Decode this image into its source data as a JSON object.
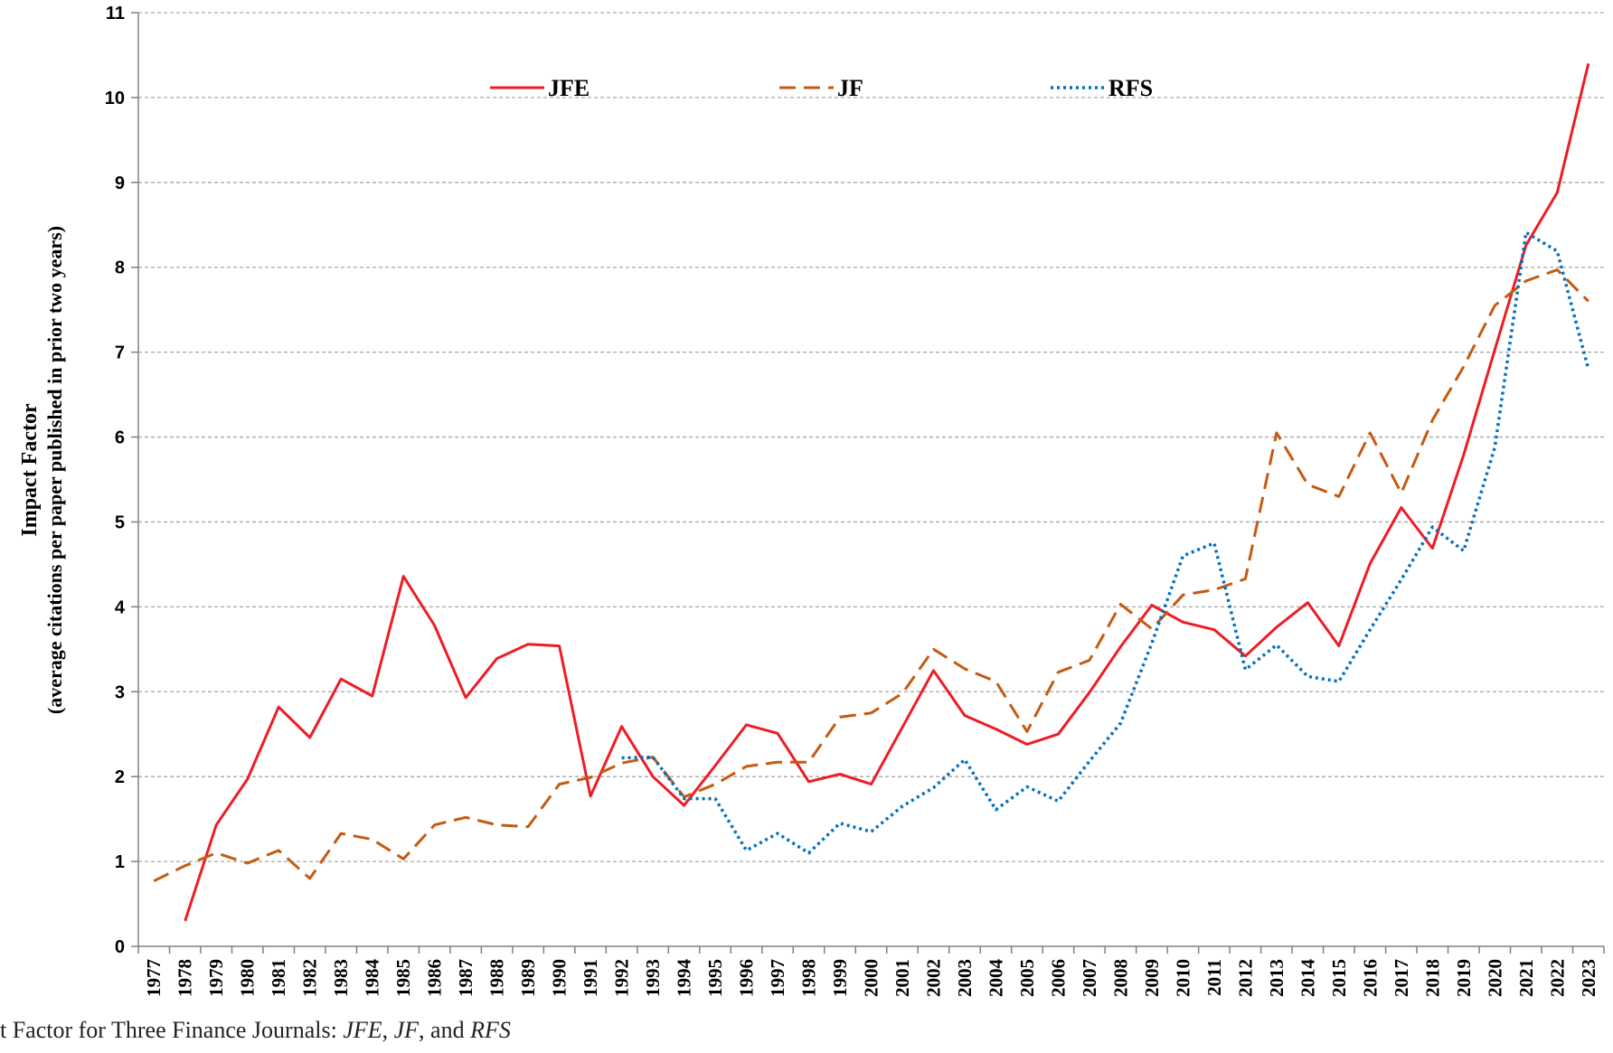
{
  "caption": {
    "prefix": "t Factor for Three Finance Journals: ",
    "j1": "JFE",
    "sep1": ", ",
    "j2": "JF",
    "sep2": ", and ",
    "j3": "RFS"
  },
  "chart_data": {
    "type": "line",
    "title": "",
    "ylabel": "Impact Factor",
    "ylabel_sub": "(average citations per paper published in prior two years)",
    "xlabel": "",
    "ylim": [
      0,
      11
    ],
    "yticks": [
      "0",
      "1",
      "2",
      "3",
      "4",
      "5",
      "6",
      "7",
      "8",
      "9",
      "10",
      "11"
    ],
    "grid": true,
    "legend_position": "top",
    "categories": [
      "1977",
      "1978",
      "1979",
      "1980",
      "1981",
      "1982",
      "1983",
      "1984",
      "1985",
      "1986",
      "1987",
      "1988",
      "1989",
      "1990",
      "1991",
      "1992",
      "1993",
      "1994",
      "1995",
      "1996",
      "1997",
      "1998",
      "1999",
      "2000",
      "2001",
      "2002",
      "2003",
      "2004",
      "2005",
      "2006",
      "2007",
      "2008",
      "2009",
      "2010",
      "2011",
      "2012",
      "2013",
      "2014",
      "2015",
      "2016",
      "2017",
      "2018",
      "2019",
      "2020",
      "2021",
      "2022",
      "2023"
    ],
    "series": [
      {
        "name": "JFE",
        "color": "#ee1c25",
        "style": "solid",
        "values": [
          null,
          0.3,
          1.43,
          1.97,
          2.82,
          2.46,
          3.15,
          2.95,
          4.36,
          3.78,
          2.93,
          3.39,
          3.56,
          3.54,
          1.77,
          2.59,
          2.0,
          1.66,
          2.13,
          2.61,
          2.51,
          1.94,
          2.03,
          1.91,
          2.58,
          3.25,
          2.72,
          2.56,
          2.38,
          2.5,
          2.99,
          3.53,
          4.02,
          3.82,
          3.73,
          3.42,
          3.76,
          4.05,
          3.54,
          4.51,
          5.17,
          4.69,
          5.79,
          7.03,
          8.26,
          8.88,
          10.4
        ]
      },
      {
        "name": "JF",
        "color": "#c55a11",
        "style": "dashed",
        "values": [
          0.77,
          0.95,
          1.1,
          0.98,
          1.13,
          0.8,
          1.33,
          1.26,
          1.03,
          1.43,
          1.52,
          1.43,
          1.41,
          1.91,
          1.99,
          2.16,
          2.23,
          1.76,
          1.91,
          2.12,
          2.17,
          2.17,
          2.7,
          2.75,
          2.98,
          3.5,
          3.27,
          3.12,
          2.53,
          3.23,
          3.37,
          4.03,
          3.74,
          4.14,
          4.2,
          4.33,
          6.05,
          5.44,
          5.3,
          6.05,
          5.34,
          6.2,
          6.83,
          7.55,
          7.84,
          7.97,
          7.6
        ]
      },
      {
        "name": "RFS",
        "color": "#0070c0",
        "style": "dotted",
        "values": [
          null,
          null,
          null,
          null,
          null,
          null,
          null,
          null,
          null,
          null,
          null,
          null,
          null,
          null,
          null,
          2.22,
          2.23,
          1.74,
          1.74,
          1.13,
          1.33,
          1.1,
          1.45,
          1.35,
          1.65,
          1.87,
          2.2,
          1.61,
          1.88,
          1.71,
          2.18,
          2.63,
          3.57,
          4.6,
          4.75,
          3.26,
          3.55,
          3.18,
          3.12,
          3.73,
          4.32,
          4.94,
          4.66,
          5.88,
          8.41,
          8.19,
          6.8
        ]
      }
    ]
  }
}
